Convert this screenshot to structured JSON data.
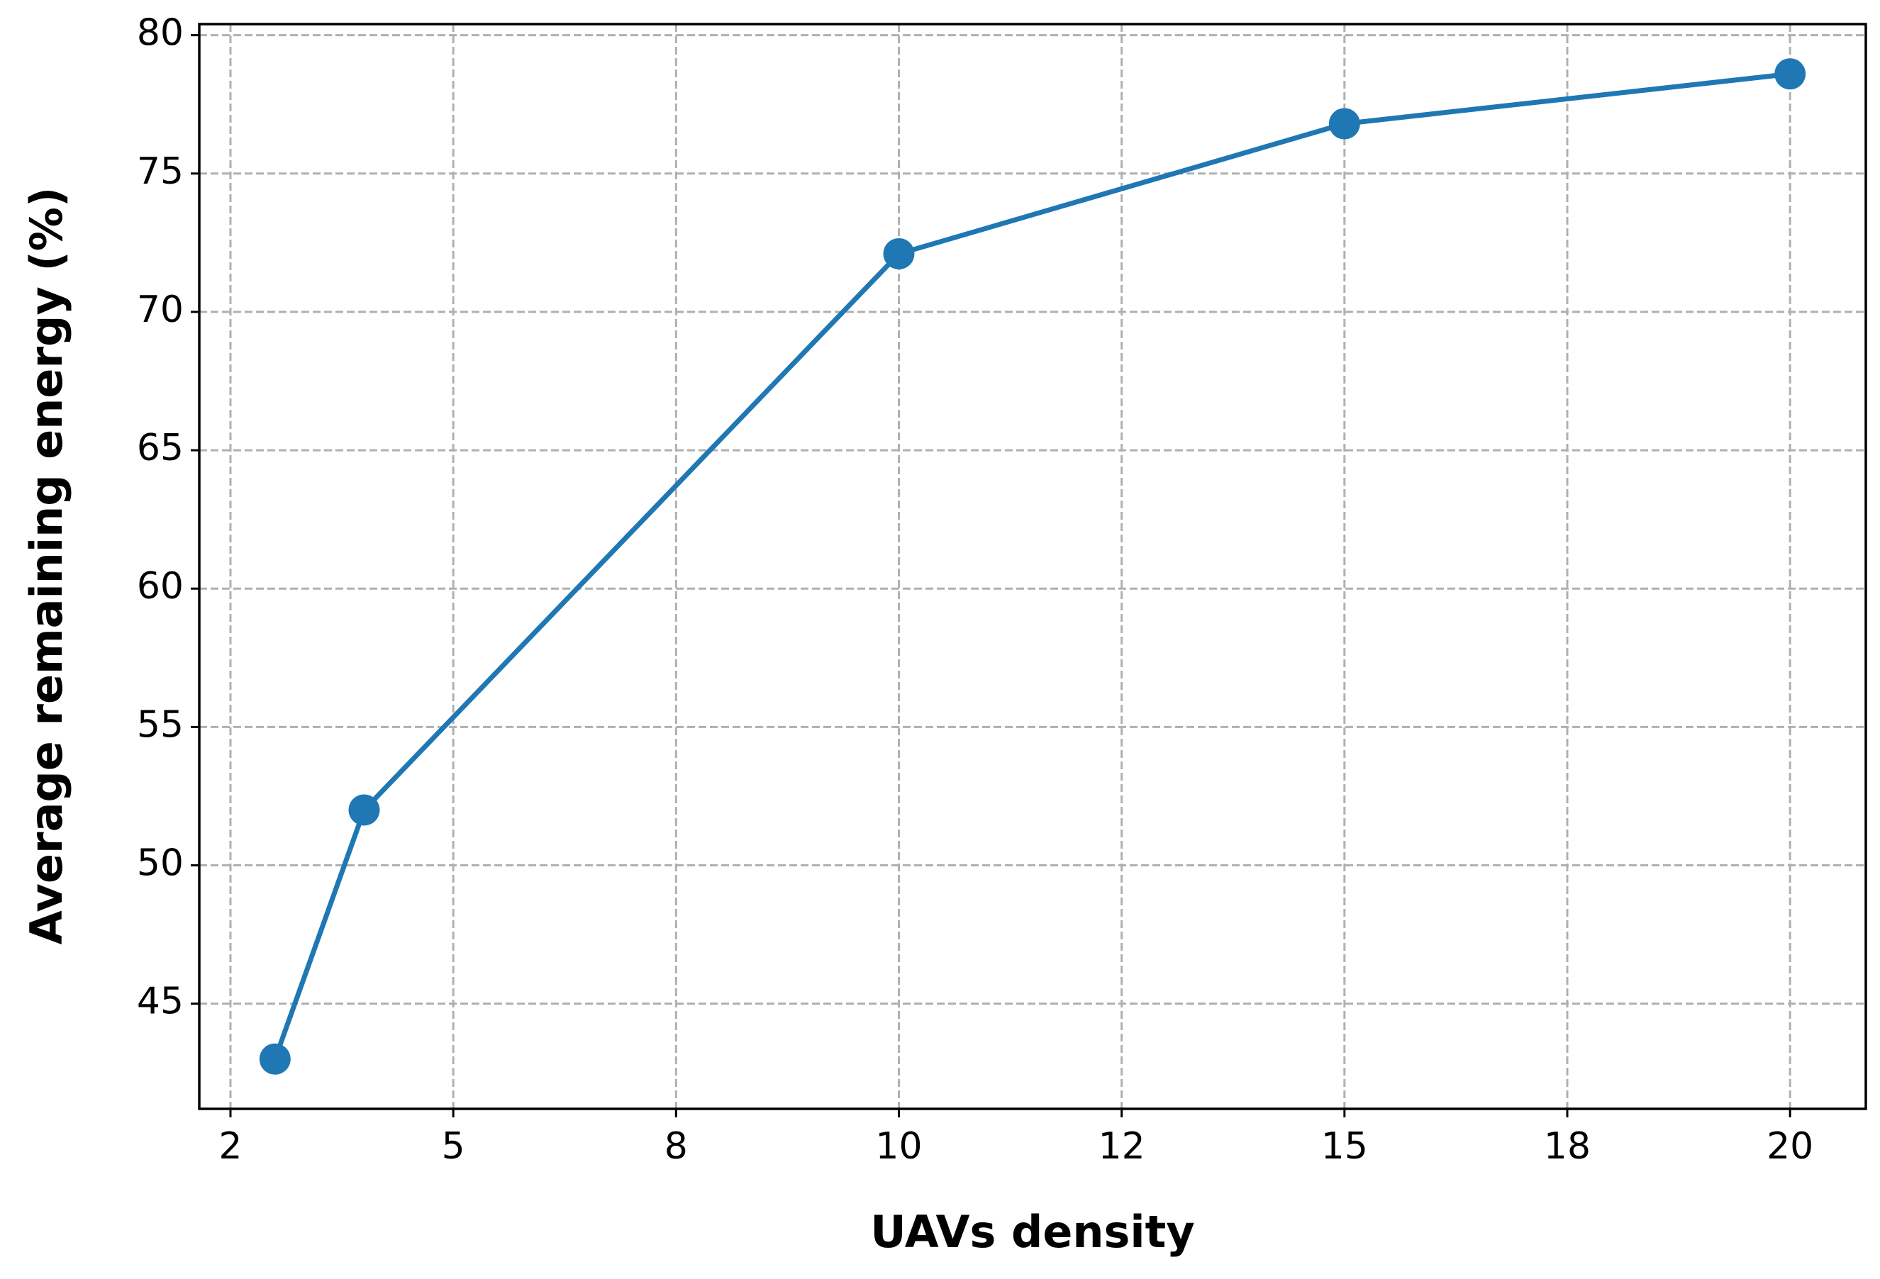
{
  "chart_data": {
    "type": "line",
    "xlabel": "UAVs density",
    "ylabel": "Average remaining energy (%)",
    "x": [
      3,
      4,
      10,
      15,
      20
    ],
    "series": [
      {
        "name": "Average remaining energy",
        "color": "#1f77b4",
        "values": [
          43.0,
          52.0,
          72.1,
          76.8,
          78.6
        ]
      }
    ],
    "xlim": [
      2.15,
      20.85
    ],
    "xticks": [
      {
        "value": 2.5,
        "label": "2"
      },
      5,
      {
        "value": 7.5,
        "label": "8"
      },
      10,
      {
        "value": 12.5,
        "label": "12"
      },
      15,
      {
        "value": 17.5,
        "label": "18"
      },
      20
    ],
    "ylim": [
      41.2,
      80.4
    ],
    "yticks": [
      45,
      50,
      55,
      60,
      65,
      70,
      75,
      80
    ],
    "grid": true
  }
}
